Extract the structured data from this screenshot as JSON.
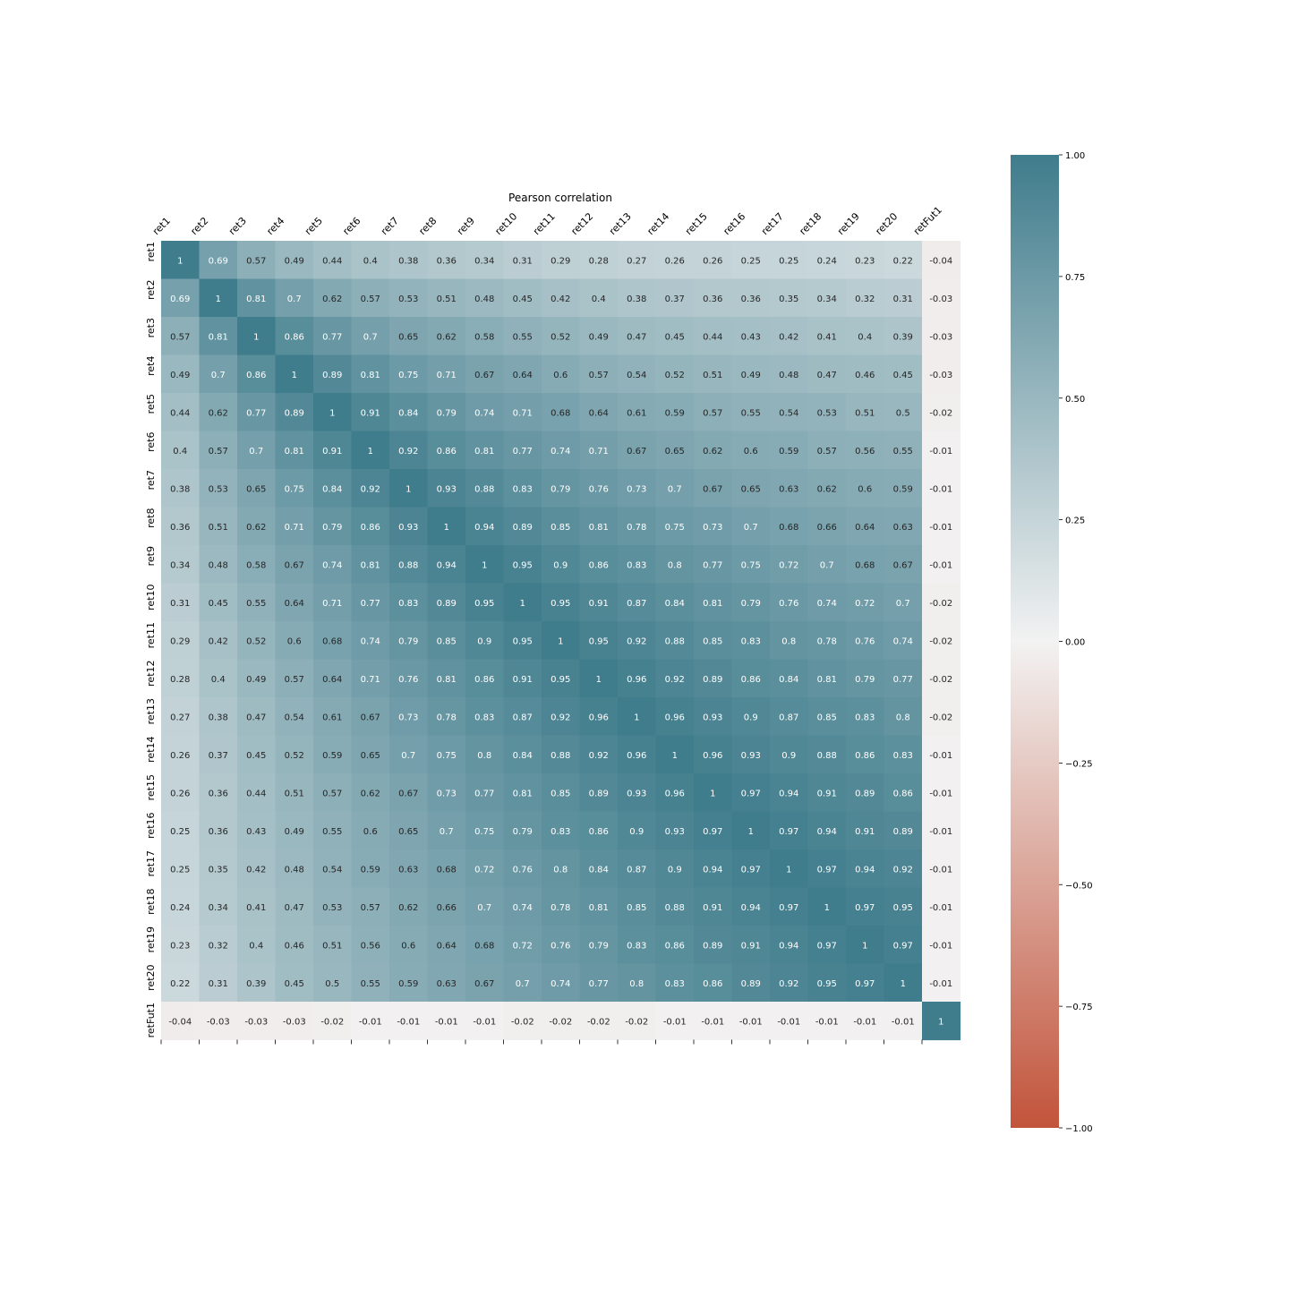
{
  "chart_data": {
    "type": "heatmap",
    "title": "Pearson correlation",
    "labels": [
      "ret1",
      "ret2",
      "ret3",
      "ret4",
      "ret5",
      "ret6",
      "ret7",
      "ret8",
      "ret9",
      "ret10",
      "ret11",
      "ret12",
      "ret13",
      "ret14",
      "ret15",
      "ret16",
      "ret17",
      "ret18",
      "ret19",
      "ret20",
      "retFut1"
    ],
    "matrix": [
      [
        1,
        0.69,
        0.57,
        0.49,
        0.44,
        0.4,
        0.38,
        0.36,
        0.34,
        0.31,
        0.29,
        0.28,
        0.27,
        0.26,
        0.26,
        0.25,
        0.25,
        0.24,
        0.23,
        0.22,
        -0.04
      ],
      [
        0.69,
        1,
        0.81,
        0.7,
        0.62,
        0.57,
        0.53,
        0.51,
        0.48,
        0.45,
        0.42,
        0.4,
        0.38,
        0.37,
        0.36,
        0.36,
        0.35,
        0.34,
        0.32,
        0.31,
        -0.03
      ],
      [
        0.57,
        0.81,
        1,
        0.86,
        0.77,
        0.7,
        0.65,
        0.62,
        0.58,
        0.55,
        0.52,
        0.49,
        0.47,
        0.45,
        0.44,
        0.43,
        0.42,
        0.41,
        0.4,
        0.39,
        -0.03
      ],
      [
        0.49,
        0.7,
        0.86,
        1,
        0.89,
        0.81,
        0.75,
        0.71,
        0.67,
        0.64,
        0.6,
        0.57,
        0.54,
        0.52,
        0.51,
        0.49,
        0.48,
        0.47,
        0.46,
        0.45,
        -0.03
      ],
      [
        0.44,
        0.62,
        0.77,
        0.89,
        1,
        0.91,
        0.84,
        0.79,
        0.74,
        0.71,
        0.68,
        0.64,
        0.61,
        0.59,
        0.57,
        0.55,
        0.54,
        0.53,
        0.51,
        0.5,
        -0.02
      ],
      [
        0.4,
        0.57,
        0.7,
        0.81,
        0.91,
        1,
        0.92,
        0.86,
        0.81,
        0.77,
        0.74,
        0.71,
        0.67,
        0.65,
        0.62,
        0.6,
        0.59,
        0.57,
        0.56,
        0.55,
        -0.01
      ],
      [
        0.38,
        0.53,
        0.65,
        0.75,
        0.84,
        0.92,
        1,
        0.93,
        0.88,
        0.83,
        0.79,
        0.76,
        0.73,
        0.7,
        0.67,
        0.65,
        0.63,
        0.62,
        0.6,
        0.59,
        -0.01
      ],
      [
        0.36,
        0.51,
        0.62,
        0.71,
        0.79,
        0.86,
        0.93,
        1,
        0.94,
        0.89,
        0.85,
        0.81,
        0.78,
        0.75,
        0.73,
        0.7,
        0.68,
        0.66,
        0.64,
        0.63,
        -0.01
      ],
      [
        0.34,
        0.48,
        0.58,
        0.67,
        0.74,
        0.81,
        0.88,
        0.94,
        1,
        0.95,
        0.9,
        0.86,
        0.83,
        0.8,
        0.77,
        0.75,
        0.72,
        0.7,
        0.68,
        0.67,
        -0.01
      ],
      [
        0.31,
        0.45,
        0.55,
        0.64,
        0.71,
        0.77,
        0.83,
        0.89,
        0.95,
        1,
        0.95,
        0.91,
        0.87,
        0.84,
        0.81,
        0.79,
        0.76,
        0.74,
        0.72,
        0.7,
        -0.02
      ],
      [
        0.29,
        0.42,
        0.52,
        0.6,
        0.68,
        0.74,
        0.79,
        0.85,
        0.9,
        0.95,
        1,
        0.95,
        0.92,
        0.88,
        0.85,
        0.83,
        0.8,
        0.78,
        0.76,
        0.74,
        -0.02
      ],
      [
        0.28,
        0.4,
        0.49,
        0.57,
        0.64,
        0.71,
        0.76,
        0.81,
        0.86,
        0.91,
        0.95,
        1,
        0.96,
        0.92,
        0.89,
        0.86,
        0.84,
        0.81,
        0.79,
        0.77,
        -0.02
      ],
      [
        0.27,
        0.38,
        0.47,
        0.54,
        0.61,
        0.67,
        0.73,
        0.78,
        0.83,
        0.87,
        0.92,
        0.96,
        1,
        0.96,
        0.93,
        0.9,
        0.87,
        0.85,
        0.83,
        0.8,
        -0.02
      ],
      [
        0.26,
        0.37,
        0.45,
        0.52,
        0.59,
        0.65,
        0.7,
        0.75,
        0.8,
        0.84,
        0.88,
        0.92,
        0.96,
        1,
        0.96,
        0.93,
        0.9,
        0.88,
        0.86,
        0.83,
        -0.01
      ],
      [
        0.26,
        0.36,
        0.44,
        0.51,
        0.57,
        0.62,
        0.67,
        0.73,
        0.77,
        0.81,
        0.85,
        0.89,
        0.93,
        0.96,
        1,
        0.97,
        0.94,
        0.91,
        0.89,
        0.86,
        -0.01
      ],
      [
        0.25,
        0.36,
        0.43,
        0.49,
        0.55,
        0.6,
        0.65,
        0.7,
        0.75,
        0.79,
        0.83,
        0.86,
        0.9,
        0.93,
        0.97,
        1,
        0.97,
        0.94,
        0.91,
        0.89,
        -0.01
      ],
      [
        0.25,
        0.35,
        0.42,
        0.48,
        0.54,
        0.59,
        0.63,
        0.68,
        0.72,
        0.76,
        0.8,
        0.84,
        0.87,
        0.9,
        0.94,
        0.97,
        1,
        0.97,
        0.94,
        0.92,
        -0.01
      ],
      [
        0.24,
        0.34,
        0.41,
        0.47,
        0.53,
        0.57,
        0.62,
        0.66,
        0.7,
        0.74,
        0.78,
        0.81,
        0.85,
        0.88,
        0.91,
        0.94,
        0.97,
        1,
        0.97,
        0.95,
        -0.01
      ],
      [
        0.23,
        0.32,
        0.4,
        0.46,
        0.51,
        0.56,
        0.6,
        0.64,
        0.68,
        0.72,
        0.76,
        0.79,
        0.83,
        0.86,
        0.89,
        0.91,
        0.94,
        0.97,
        1,
        0.97,
        -0.01
      ],
      [
        0.22,
        0.31,
        0.39,
        0.45,
        0.5,
        0.55,
        0.59,
        0.63,
        0.67,
        0.7,
        0.74,
        0.77,
        0.8,
        0.83,
        0.86,
        0.89,
        0.92,
        0.95,
        0.97,
        1,
        -0.01
      ],
      [
        -0.04,
        -0.03,
        -0.03,
        -0.03,
        -0.02,
        -0.01,
        -0.01,
        -0.01,
        -0.01,
        -0.02,
        -0.02,
        -0.02,
        -0.02,
        -0.01,
        -0.01,
        -0.01,
        -0.01,
        -0.01,
        -0.01,
        -0.01,
        1
      ]
    ],
    "vmin": -1,
    "vmax": 1,
    "colorbar_ticks": [
      {
        "value": 1,
        "label": "1.00"
      },
      {
        "value": 0.75,
        "label": "0.75"
      },
      {
        "value": 0.5,
        "label": "0.50"
      },
      {
        "value": 0.25,
        "label": "0.25"
      },
      {
        "value": 0,
        "label": "0.00"
      },
      {
        "value": -0.25,
        "label": "−0.25"
      },
      {
        "value": -0.5,
        "label": "−0.50"
      },
      {
        "value": -0.75,
        "label": "−0.75"
      },
      {
        "value": -1,
        "label": "−1.00"
      }
    ],
    "colors": {
      "negative": "#c2543b",
      "neutral": "#f2f2f2",
      "positive": "#3f7c8c"
    },
    "x_tick_position": "top",
    "annotated": true,
    "colorbar_position": "right"
  }
}
